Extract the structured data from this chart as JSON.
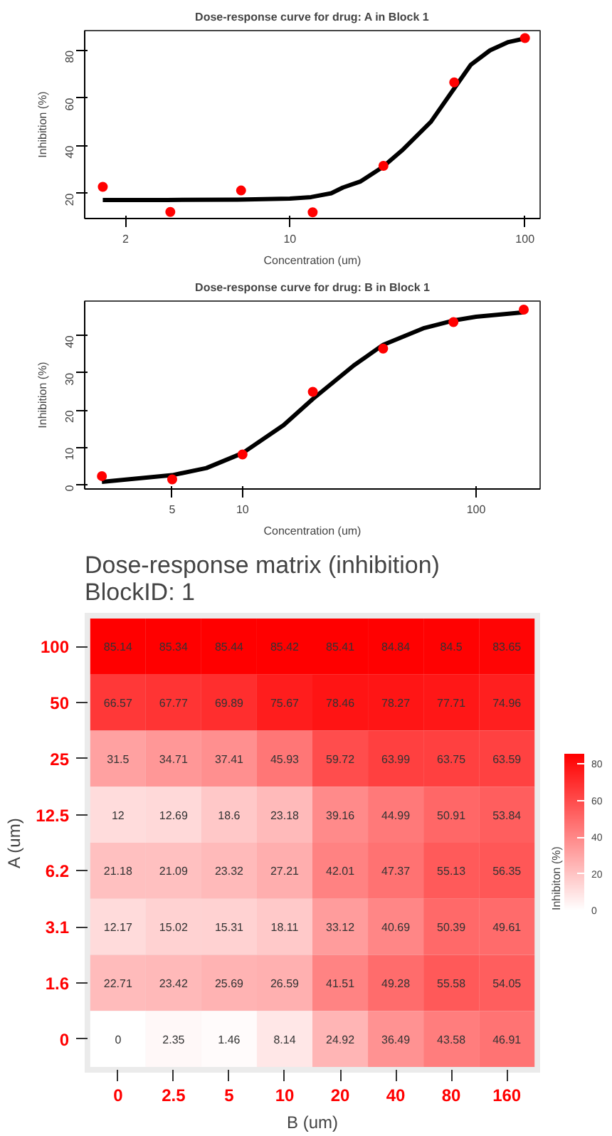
{
  "chart_data": [
    {
      "type": "scatter",
      "title": "Dose-response curve for drug: A in Block 1",
      "xlabel": "Concentration (um)",
      "ylabel": "Inhibition (%)",
      "log": "x",
      "xlim": [
        1.34,
        116
      ],
      "ylim": [
        9.4,
        88.3
      ],
      "xticks": [
        2,
        10,
        100
      ],
      "yticks": [
        20,
        40,
        60,
        80
      ],
      "series": [
        {
          "type": "scatter",
          "marker": "circle",
          "color": "#ff0000",
          "x": [
            1.6,
            3.1,
            6.2,
            12.5,
            25,
            50,
            100
          ],
          "values": [
            22.71,
            12.17,
            21.18,
            12,
            31.5,
            66.57,
            85.14
          ]
        },
        {
          "type": "line",
          "color": "#000000",
          "x": [
            1.6,
            3,
            6,
            10,
            12.3,
            15,
            16.8,
            20,
            24.8,
            30,
            39.8,
            50,
            58.9,
            71,
            85,
            100
          ],
          "values": [
            17.2,
            17.2,
            17.3,
            17.8,
            18.4,
            20,
            22.4,
            25,
            31,
            38,
            50,
            64,
            74,
            80,
            83.5,
            85
          ]
        }
      ]
    },
    {
      "type": "scatter",
      "title": "Dose-response curve for drug: B in Block 1",
      "xlabel": "Concentration (um)",
      "ylabel": "Inhibition (%)",
      "log": "x",
      "xlim": [
        2.11,
        188
      ],
      "ylim": [
        -1.1,
        49.2
      ],
      "xticks": [
        5,
        10,
        100
      ],
      "yticks": [
        0,
        10,
        20,
        30,
        40
      ],
      "series": [
        {
          "type": "scatter",
          "marker": "circle",
          "color": "#ff0000",
          "x": [
            2.5,
            5,
            10,
            20,
            40,
            80,
            160
          ],
          "values": [
            2.35,
            1.46,
            8.14,
            24.92,
            36.49,
            43.58,
            46.91
          ]
        },
        {
          "type": "line",
          "color": "#000000",
          "x": [
            2.5,
            5,
            7,
            10,
            15,
            20,
            30,
            40,
            60,
            80,
            100,
            160
          ],
          "values": [
            0.8,
            2.6,
            4.5,
            8.5,
            16,
            23,
            32,
            37.5,
            42,
            44,
            45,
            46.2
          ]
        }
      ]
    },
    {
      "type": "heatmap",
      "title": "Dose-response matrix (inhibition)\n BlockID: 1",
      "xlabel": "B (um)",
      "ylabel": "A (um)",
      "clabel": "Inhibiton (%)",
      "color": "#ff0000",
      "data_labels": true,
      "clim": [
        0,
        85.44
      ],
      "cticks": [
        0,
        20,
        40,
        60,
        80
      ],
      "categories": [
        "0",
        "2.5",
        "5",
        "10",
        "20",
        "40",
        "80",
        "160"
      ],
      "y_categories": [
        "100",
        "50",
        "25",
        "12.5",
        "6.2",
        "3.1",
        "1.6",
        "0"
      ],
      "cells": [
        [
          85.14,
          85.34,
          85.44,
          85.42,
          85.41,
          84.84,
          84.5,
          83.65
        ],
        [
          66.57,
          67.77,
          69.89,
          75.67,
          78.46,
          78.27,
          77.71,
          74.96
        ],
        [
          31.5,
          34.71,
          37.41,
          45.93,
          59.72,
          63.99,
          63.75,
          63.59
        ],
        [
          12,
          12.69,
          18.6,
          23.18,
          39.16,
          44.99,
          50.91,
          53.84
        ],
        [
          21.18,
          21.09,
          23.32,
          27.21,
          42.01,
          47.37,
          55.13,
          56.35
        ],
        [
          12.17,
          15.02,
          15.31,
          18.11,
          33.12,
          40.69,
          50.39,
          49.61
        ],
        [
          22.71,
          23.42,
          25.69,
          26.59,
          41.51,
          49.28,
          55.58,
          54.05
        ],
        [
          0,
          2.35,
          1.46,
          8.14,
          24.92,
          36.49,
          43.58,
          46.91
        ]
      ]
    }
  ]
}
